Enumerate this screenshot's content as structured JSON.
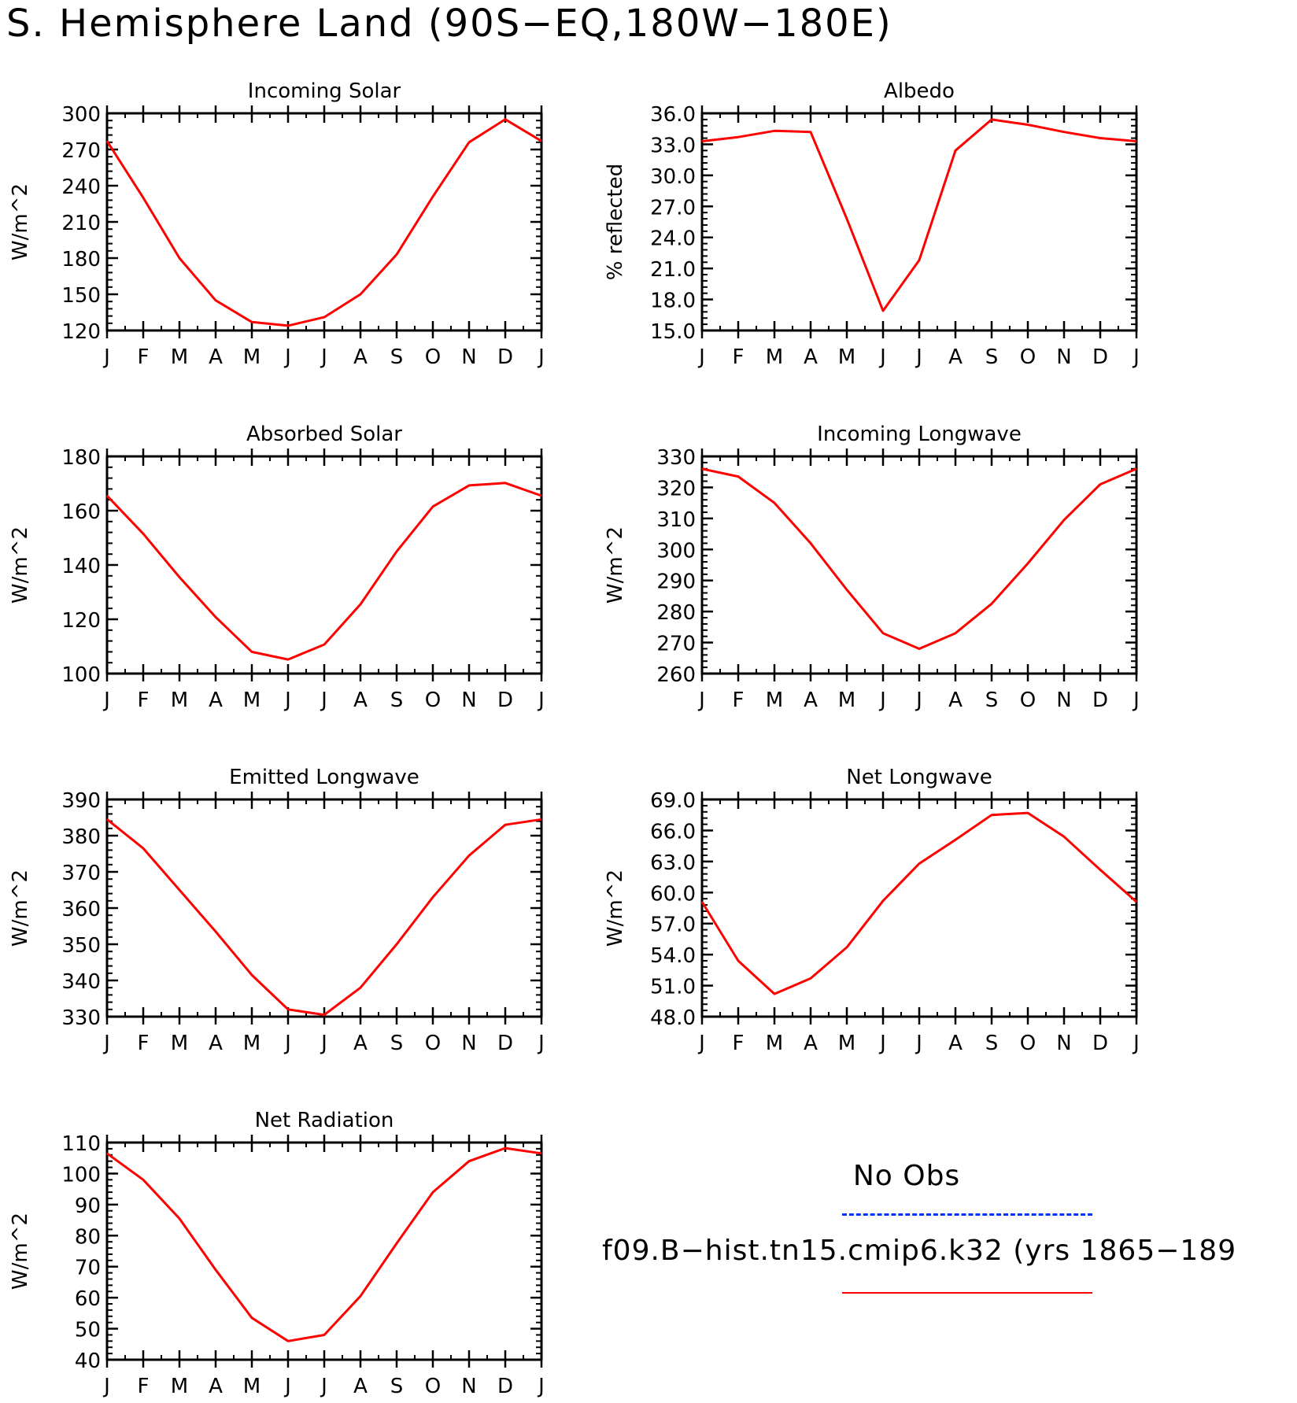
{
  "figure_title": "S. Hemisphere Land (90S−EQ,180W−180E)",
  "colors": {
    "model_line": "#ff0000",
    "obs_line": "#0033ff",
    "axis": "#000000"
  },
  "months": [
    "J",
    "F",
    "M",
    "A",
    "M",
    "J",
    "J",
    "A",
    "S",
    "O",
    "N",
    "D",
    "J"
  ],
  "legend": {
    "obs_label": "No Obs",
    "model_label": "f09.B−hist.tn15.cmip6.k32 (yrs 1865−189"
  },
  "chart_data": [
    {
      "type": "line",
      "title": "Incoming Solar",
      "ylabel": "W/m^2",
      "ylim": [
        120,
        300
      ],
      "yticks": [
        "120",
        "150",
        "180",
        "210",
        "240",
        "270",
        "300"
      ],
      "categories": [
        "J",
        "F",
        "M",
        "A",
        "M",
        "J",
        "J",
        "A",
        "S",
        "O",
        "N",
        "D",
        "J"
      ],
      "series": [
        {
          "values": [
            277,
            230,
            180,
            145,
            127,
            124,
            131,
            150,
            183,
            231,
            276,
            295,
            277
          ]
        }
      ]
    },
    {
      "type": "line",
      "title": "Albedo",
      "ylabel": "% reflected",
      "ylim": [
        15,
        36
      ],
      "yticks": [
        "15.0",
        "18.0",
        "21.0",
        "24.0",
        "27.0",
        "30.0",
        "33.0",
        "36.0"
      ],
      "categories": [
        "J",
        "F",
        "M",
        "A",
        "M",
        "J",
        "J",
        "A",
        "S",
        "O",
        "N",
        "D",
        "J"
      ],
      "series": [
        {
          "values": [
            33.3,
            33.7,
            34.3,
            34.2,
            25.8,
            16.9,
            21.8,
            32.4,
            35.4,
            34.9,
            34.2,
            33.6,
            33.3
          ]
        }
      ]
    },
    {
      "type": "line",
      "title": "Absorbed Solar",
      "ylabel": "W/m^2",
      "ylim": [
        100,
        180
      ],
      "yticks": [
        "100",
        "120",
        "140",
        "160",
        "180"
      ],
      "categories": [
        "J",
        "F",
        "M",
        "A",
        "M",
        "J",
        "J",
        "A",
        "S",
        "O",
        "N",
        "D",
        "J"
      ],
      "series": [
        {
          "values": [
            165.5,
            151.5,
            135.5,
            120.8,
            108,
            105.2,
            110.7,
            125.5,
            145,
            161.5,
            169.3,
            170.2,
            165.5
          ]
        }
      ]
    },
    {
      "type": "line",
      "title": "Incoming Longwave",
      "ylabel": "W/m^2",
      "ylim": [
        260,
        330
      ],
      "yticks": [
        "260",
        "270",
        "280",
        "290",
        "300",
        "310",
        "320",
        "330"
      ],
      "categories": [
        "J",
        "F",
        "M",
        "A",
        "M",
        "J",
        "J",
        "A",
        "S",
        "O",
        "N",
        "D",
        "J"
      ],
      "series": [
        {
          "values": [
            326,
            323.5,
            315,
            302,
            287,
            273,
            268,
            273,
            282.5,
            295.5,
            309.5,
            321,
            326
          ]
        }
      ]
    },
    {
      "type": "line",
      "title": "Emitted Longwave",
      "ylabel": "W/m^2",
      "ylim": [
        330,
        390
      ],
      "yticks": [
        "330",
        "340",
        "350",
        "360",
        "370",
        "380",
        "390"
      ],
      "categories": [
        "J",
        "F",
        "M",
        "A",
        "M",
        "J",
        "J",
        "A",
        "S",
        "O",
        "N",
        "D",
        "J"
      ],
      "series": [
        {
          "values": [
            384.5,
            376.5,
            365,
            353.5,
            341.5,
            332,
            330.5,
            338,
            350,
            363,
            374.5,
            383,
            384.5
          ]
        }
      ]
    },
    {
      "type": "line",
      "title": "Net Longwave",
      "ylabel": "W/m^2",
      "ylim": [
        48,
        69
      ],
      "yticks": [
        "48.0",
        "51.0",
        "54.0",
        "57.0",
        "60.0",
        "63.0",
        "66.0",
        "69.0"
      ],
      "categories": [
        "J",
        "F",
        "M",
        "A",
        "M",
        "J",
        "J",
        "A",
        "S",
        "O",
        "N",
        "D",
        "J"
      ],
      "series": [
        {
          "values": [
            59.1,
            53.4,
            50.2,
            51.7,
            54.7,
            59.2,
            62.8,
            65.1,
            67.5,
            67.7,
            65.4,
            62.2,
            59.1
          ]
        }
      ]
    },
    {
      "type": "line",
      "title": "Net Radiation",
      "ylabel": "W/m^2",
      "ylim": [
        40,
        110
      ],
      "yticks": [
        "40",
        "50",
        "60",
        "70",
        "80",
        "90",
        "100",
        "110"
      ],
      "categories": [
        "J",
        "F",
        "M",
        "A",
        "M",
        "J",
        "J",
        "A",
        "S",
        "O",
        "N",
        "D",
        "J"
      ],
      "series": [
        {
          "values": [
            106.5,
            98,
            85.5,
            69,
            53.5,
            46,
            48,
            60.5,
            77.5,
            94,
            104,
            108.2,
            106.5
          ]
        }
      ]
    }
  ]
}
